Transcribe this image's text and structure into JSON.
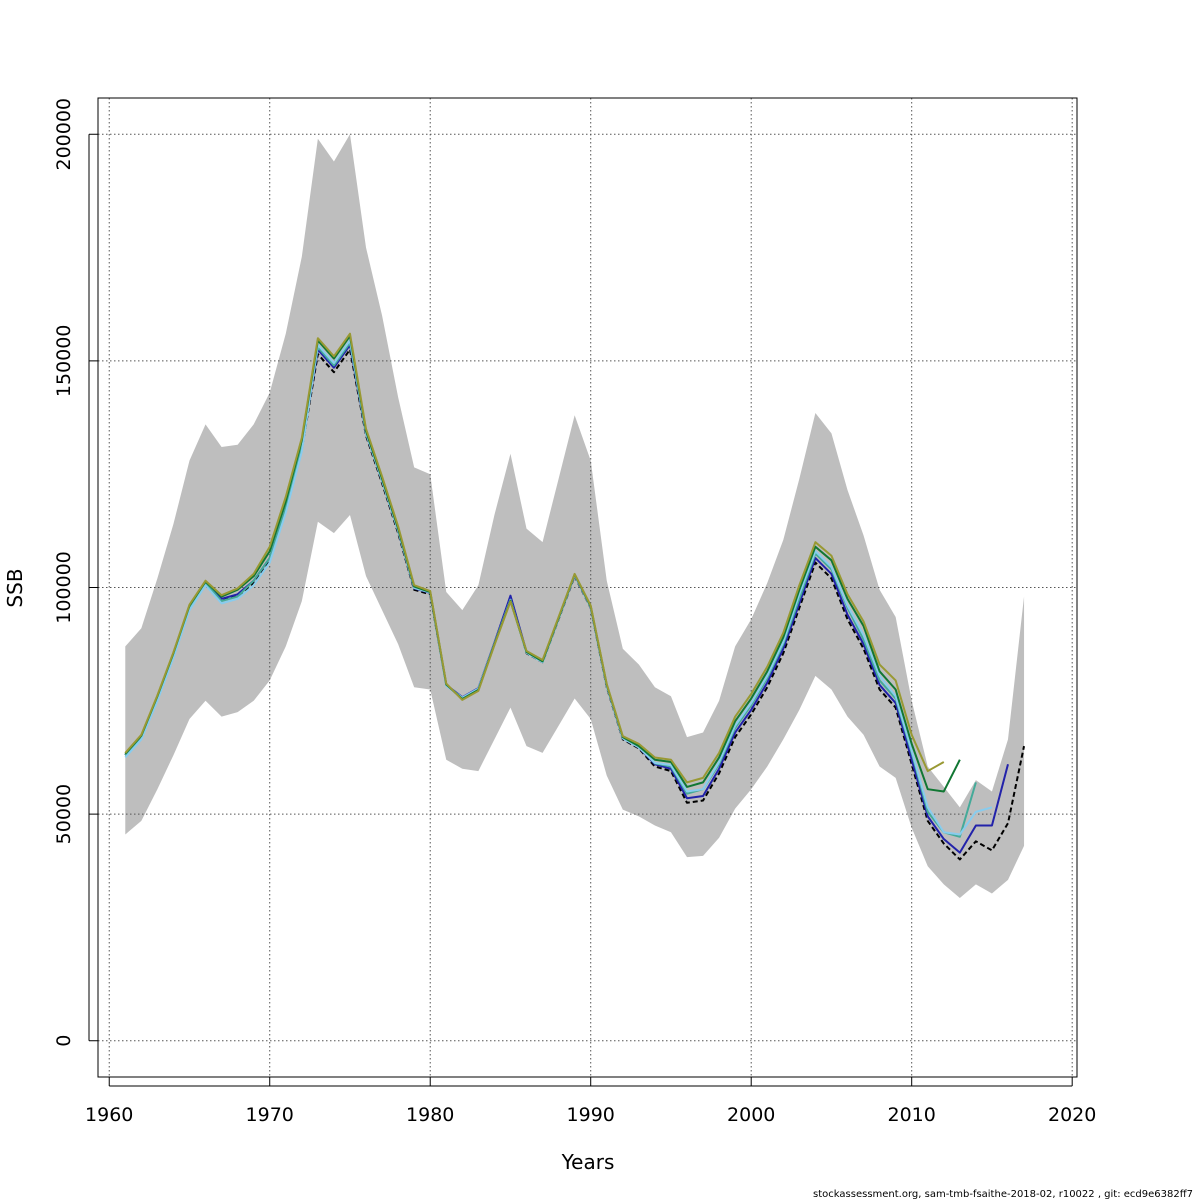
{
  "chart_data": {
    "type": "line",
    "xlabel": "Years",
    "ylabel": "SSB",
    "xlim": [
      1959.3,
      2020.3
    ],
    "ylim": [
      -8000,
      208000
    ],
    "x_ticks": [
      1960,
      1970,
      1980,
      1990,
      2000,
      2010,
      2020
    ],
    "x_tick_labels": [
      "1960",
      "1970",
      "1980",
      "1990",
      "2000",
      "2010",
      "2020"
    ],
    "y_ticks": [
      0,
      50000,
      100000,
      150000,
      200000
    ],
    "y_tick_labels": [
      "0",
      "50000",
      "100000",
      "150000",
      "200000"
    ],
    "grid": true,
    "confidence_band": {
      "color": "#bebebe",
      "x": [
        1961,
        1962,
        1963,
        1964,
        1965,
        1966,
        1967,
        1968,
        1969,
        1970,
        1971,
        1972,
        1973,
        1974,
        1975,
        1976,
        1977,
        1978,
        1979,
        1980,
        1981,
        1982,
        1983,
        1984,
        1985,
        1986,
        1987,
        1988,
        1989,
        1990,
        1991,
        1992,
        1993,
        1994,
        1995,
        1996,
        1997,
        1998,
        1999,
        2000,
        2001,
        2002,
        2003,
        2004,
        2005,
        2006,
        2007,
        2008,
        2009,
        2010,
        2011,
        2012,
        2013,
        2014,
        2015,
        2016,
        2017
      ],
      "upper": [
        87000,
        91000,
        102000,
        114000,
        128000,
        136000,
        131000,
        131500,
        136000,
        143000,
        156000,
        173000,
        199000,
        194000,
        200000,
        175000,
        160000,
        142000,
        126500,
        125000,
        99000,
        95000,
        100500,
        116000,
        129500,
        113000,
        110000,
        124000,
        138000,
        128000,
        101500,
        86500,
        83000,
        78000,
        76000,
        67000,
        68000,
        75000,
        87000,
        93000,
        101000,
        110500,
        124000,
        138500,
        134000,
        121500,
        111500,
        99500,
        93500,
        75000,
        60500,
        56000,
        51500,
        57500,
        55000,
        66500,
        98000
      ],
      "lower": [
        45500,
        48500,
        55500,
        63000,
        71000,
        75000,
        71500,
        72500,
        75000,
        79500,
        87000,
        97000,
        114500,
        112000,
        116000,
        102500,
        95000,
        87500,
        78000,
        77500,
        62000,
        60000,
        59500,
        66500,
        73500,
        65000,
        63500,
        69500,
        75500,
        71000,
        58500,
        51000,
        49500,
        47500,
        46000,
        40500,
        40800,
        44800,
        51200,
        55500,
        60500,
        66500,
        73000,
        80500,
        77500,
        71500,
        67500,
        60500,
        58000,
        47000,
        38500,
        34500,
        31500,
        34500,
        32500,
        35500,
        43000
      ]
    },
    "series": [
      {
        "color": "#000000",
        "dashed": true,
        "x": [
          1961,
          1962,
          1963,
          1964,
          1965,
          1966,
          1967,
          1968,
          1969,
          1970,
          1971,
          1972,
          1973,
          1974,
          1975,
          1976,
          1977,
          1978,
          1979,
          1980,
          1981,
          1982,
          1983,
          1984,
          1985,
          1986,
          1987,
          1988,
          1989,
          1990,
          1991,
          1992,
          1993,
          1994,
          1995,
          1996,
          1997,
          1998,
          1999,
          2000,
          2001,
          2002,
          2003,
          2004,
          2005,
          2006,
          2007,
          2008,
          2009,
          2010,
          2011,
          2012,
          2013,
          2014,
          2015,
          2016,
          2017
        ],
        "y": [
          63000,
          67000,
          75500,
          85000,
          95500,
          101000,
          97500,
          98000,
          101000,
          106000,
          117000,
          130500,
          151500,
          147500,
          152500,
          133500,
          123000,
          112000,
          99500,
          98500,
          78500,
          75500,
          77500,
          87500,
          98000,
          85500,
          83500,
          93000,
          102500,
          95500,
          78000,
          66500,
          64500,
          60500,
          59500,
          52500,
          53000,
          59000,
          67000,
          72000,
          78000,
          85500,
          95500,
          105500,
          102000,
          93000,
          86500,
          77500,
          73500,
          61000,
          48500,
          43500,
          40000,
          44000,
          42000,
          48000,
          65000
        ]
      },
      {
        "color": "#2222aa",
        "dashed": false,
        "x": [
          1961,
          1962,
          1963,
          1964,
          1965,
          1966,
          1967,
          1968,
          1969,
          1970,
          1971,
          1972,
          1973,
          1974,
          1975,
          1976,
          1977,
          1978,
          1979,
          1980,
          1981,
          1982,
          1983,
          1984,
          1985,
          1986,
          1987,
          1988,
          1989,
          1990,
          1991,
          1992,
          1993,
          1994,
          1995,
          1996,
          1997,
          1998,
          1999,
          2000,
          2001,
          2002,
          2003,
          2004,
          2005,
          2006,
          2007,
          2008,
          2009,
          2010,
          2011,
          2012,
          2013,
          2014,
          2015,
          2016
        ],
        "y": [
          63000,
          67000,
          75500,
          85000,
          95500,
          101000,
          97500,
          98500,
          101500,
          106500,
          117500,
          131000,
          152500,
          148500,
          153500,
          134000,
          123500,
          112500,
          99800,
          98800,
          78500,
          75800,
          77800,
          87800,
          98200,
          85800,
          83800,
          93200,
          102700,
          95700,
          78300,
          66700,
          64700,
          61000,
          60000,
          53500,
          54000,
          60000,
          68000,
          73000,
          79000,
          86500,
          96500,
          106500,
          103000,
          94000,
          87500,
          78500,
          74500,
          62000,
          49500,
          44500,
          41500,
          47500,
          47500,
          61000
        ]
      },
      {
        "color": "#44aa99",
        "dashed": false,
        "x": [
          1961,
          1962,
          1963,
          1964,
          1965,
          1966,
          1967,
          1968,
          1969,
          1970,
          1971,
          1972,
          1973,
          1974,
          1975,
          1976,
          1977,
          1978,
          1979,
          1980,
          1981,
          1982,
          1983,
          1984,
          1985,
          1986,
          1987,
          1988,
          1989,
          1990,
          1991,
          1992,
          1993,
          1994,
          1995,
          1996,
          1997,
          1998,
          1999,
          2000,
          2001,
          2002,
          2003,
          2004,
          2005,
          2006,
          2007,
          2008,
          2009,
          2010,
          2011,
          2012,
          2013,
          2014
        ],
        "y": [
          63000,
          67000,
          75700,
          85200,
          95700,
          101000,
          97000,
          98000,
          101500,
          106500,
          117500,
          131500,
          153000,
          149000,
          154000,
          134200,
          123700,
          112700,
          99900,
          98900,
          78500,
          75600,
          77600,
          87400,
          97200,
          85700,
          83600,
          93200,
          102800,
          95700,
          78400,
          66800,
          64800,
          61200,
          60500,
          54500,
          55500,
          61000,
          69000,
          74000,
          80000,
          87500,
          97500,
          107500,
          104000,
          95500,
          88500,
          79500,
          75500,
          63500,
          50500,
          46000,
          45000,
          57000
        ]
      },
      {
        "color": "#88ccee",
        "dashed": false,
        "x": [
          1961,
          1962,
          1963,
          1964,
          1965,
          1966,
          1967,
          1968,
          1969,
          1970,
          1971,
          1972,
          1973,
          1974,
          1975,
          1976,
          1977,
          1978,
          1979,
          1980,
          1981,
          1982,
          1983,
          1984,
          1985,
          1986,
          1987,
          1988,
          1989,
          1990,
          1991,
          1992,
          1993,
          1994,
          1995,
          1996,
          1997,
          1998,
          1999,
          2000,
          2001,
          2002,
          2003,
          2004,
          2005,
          2006,
          2007,
          2008,
          2009,
          2010,
          2011,
          2012,
          2013,
          2014,
          2015
        ],
        "y": [
          62500,
          66500,
          75000,
          84500,
          95000,
          100500,
          96500,
          97500,
          100500,
          105500,
          116500,
          130000,
          153500,
          149500,
          154500,
          134000,
          123500,
          112500,
          99900,
          98900,
          78300,
          75700,
          77700,
          87600,
          97300,
          85600,
          83500,
          93100,
          102700,
          95600,
          78200,
          66700,
          64700,
          61300,
          60800,
          55000,
          55500,
          61500,
          69500,
          74500,
          80500,
          88000,
          98500,
          108000,
          104500,
          96000,
          89500,
          80500,
          76000,
          64000,
          51500,
          46000,
          45500,
          50500,
          51500
        ]
      },
      {
        "color": "#117733",
        "dashed": false,
        "x": [
          1961,
          1962,
          1963,
          1964,
          1965,
          1966,
          1967,
          1968,
          1969,
          1970,
          1971,
          1972,
          1973,
          1974,
          1975,
          1976,
          1977,
          1978,
          1979,
          1980,
          1981,
          1982,
          1983,
          1984,
          1985,
          1986,
          1987,
          1988,
          1989,
          1990,
          1991,
          1992,
          1993,
          1994,
          1995,
          1996,
          1997,
          1998,
          1999,
          2000,
          2001,
          2002,
          2003,
          2004,
          2005,
          2006,
          2007,
          2008,
          2009,
          2010,
          2011,
          2012,
          2013
        ],
        "y": [
          63300,
          67300,
          76000,
          85500,
          96000,
          101300,
          98000,
          99500,
          102500,
          108000,
          119000,
          132500,
          154500,
          150500,
          155500,
          134500,
          124000,
          113000,
          100200,
          99000,
          78600,
          75400,
          77400,
          87500,
          97100,
          85800,
          83700,
          93300,
          102900,
          95800,
          78500,
          67000,
          65000,
          62000,
          61500,
          56000,
          57000,
          62500,
          70500,
          75500,
          81500,
          89000,
          99500,
          109000,
          106000,
          97500,
          91500,
          81500,
          77500,
          65500,
          55500,
          55000,
          62000
        ]
      },
      {
        "color": "#999933",
        "dashed": false,
        "x": [
          1961,
          1962,
          1963,
          1964,
          1965,
          1966,
          1967,
          1968,
          1969,
          1970,
          1971,
          1972,
          1973,
          1974,
          1975,
          1976,
          1977,
          1978,
          1979,
          1980,
          1981,
          1982,
          1983,
          1984,
          1985,
          1986,
          1987,
          1988,
          1989,
          1990,
          1991,
          1992,
          1993,
          1994,
          1995,
          1996,
          1997,
          1998,
          1999,
          2000,
          2001,
          2002,
          2003,
          2004,
          2005,
          2006,
          2007,
          2008,
          2009,
          2010,
          2011,
          2012
        ],
        "y": [
          63500,
          67500,
          76200,
          85700,
          96200,
          101500,
          98300,
          99800,
          103000,
          109000,
          120000,
          133000,
          155000,
          151000,
          156000,
          135000,
          124500,
          113500,
          100500,
          99200,
          78800,
          75200,
          77200,
          87300,
          96900,
          86000,
          84000,
          93500,
          103000,
          96000,
          78700,
          67200,
          65500,
          62500,
          62000,
          57000,
          58000,
          63500,
          71500,
          76500,
          82500,
          90000,
          100500,
          110000,
          107000,
          98500,
          92500,
          83000,
          79500,
          67500,
          59500,
          61500
        ]
      }
    ]
  },
  "footer": "stockassessment.org, sam-tmb-fsaithe-2018-02, r10022 , git: ecd9e6382ff7"
}
